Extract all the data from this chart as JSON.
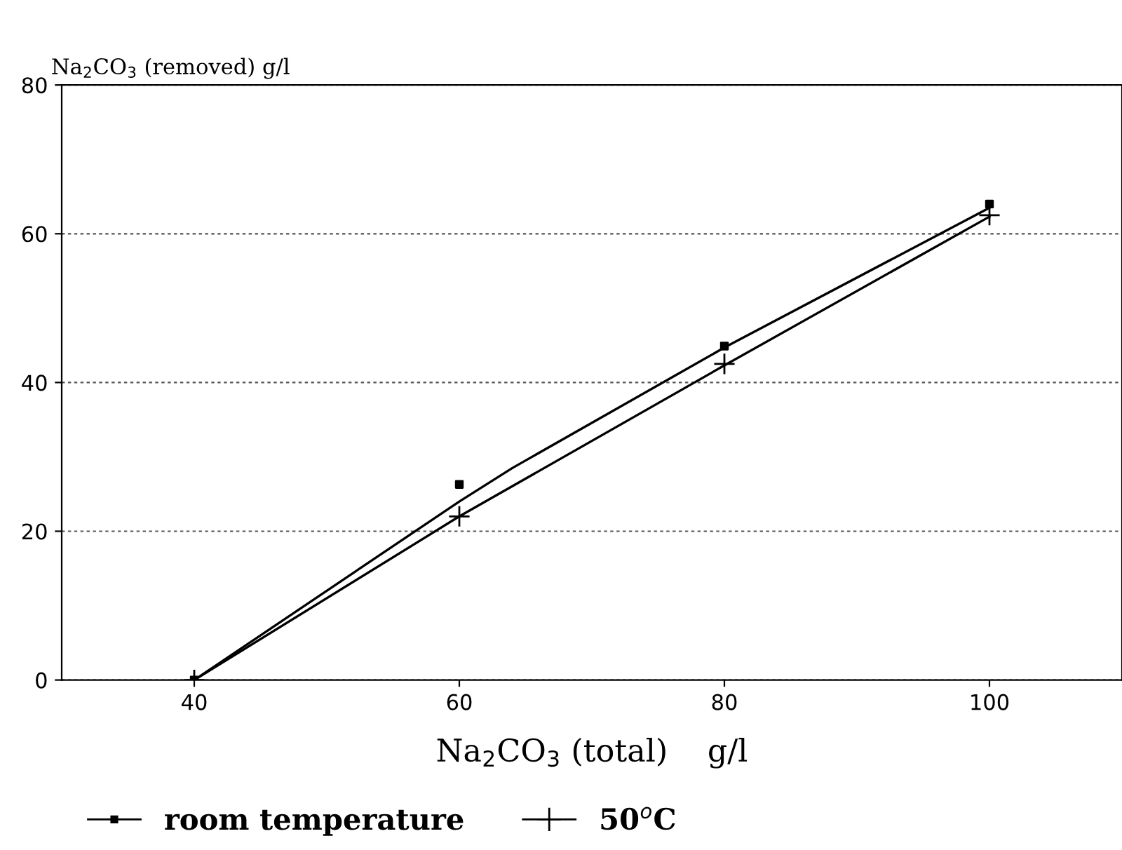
{
  "chart_data": {
    "type": "scatter",
    "xlabel": "Na$_{2}$CO$_{3}$ (total)    g/l",
    "ylabel": "Na$_{2}$CO$_{3}$ (removed) g/l",
    "xlim": [
      30,
      110
    ],
    "xticks": [
      40,
      60,
      80,
      100
    ],
    "ylim": [
      0,
      80
    ],
    "yticks": [
      0,
      20,
      40,
      60,
      80
    ],
    "grid": "y",
    "legend": "bottom",
    "series": [
      {
        "name": "room temperature",
        "marker": "square",
        "color": "#000000",
        "x": [
          40,
          60,
          80,
          100
        ],
        "values": [
          0,
          26.3,
          44.9,
          64
        ]
      },
      {
        "name": "50$^{o}$C",
        "marker": "cross",
        "color": "#000000",
        "x": [
          40,
          60,
          80,
          100
        ],
        "values": [
          0,
          22,
          42.5,
          62.5
        ]
      },
      {
        "type": "line",
        "marker": "none",
        "color": "#000000",
        "x": [
          40,
          60,
          64,
          80,
          100
        ],
        "values": [
          0,
          24,
          28.5,
          44.7,
          63.5
        ]
      },
      {
        "type": "line",
        "marker": "none",
        "color": "#000000",
        "x": [
          40,
          60,
          80,
          100
        ],
        "values": [
          0,
          22,
          42.3,
          62.3
        ]
      }
    ]
  }
}
